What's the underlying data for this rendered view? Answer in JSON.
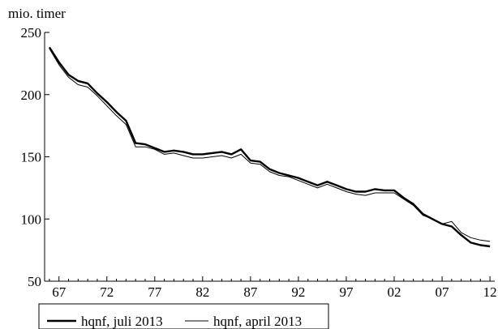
{
  "chart_data": {
    "type": "line",
    "ylabel": "mio. timer",
    "ylim": [
      50,
      250
    ],
    "yticks": [
      50,
      100,
      150,
      200,
      250
    ],
    "x_tick_labels": [
      "67",
      "72",
      "77",
      "82",
      "87",
      "92",
      "97",
      "02",
      "07",
      "12"
    ],
    "x_tick_positions": [
      1967,
      1972,
      1977,
      1982,
      1987,
      1992,
      1997,
      2002,
      2007,
      2012
    ],
    "xlim": [
      1965.5,
      2012.5
    ],
    "legend_position": "bottom-left",
    "grid": false,
    "series": [
      {
        "name": "hqnf, juli 2013",
        "color": "#000000",
        "line_style": "thick",
        "x": [
          1966,
          1967,
          1968,
          1969,
          1970,
          1971,
          1972,
          1973,
          1974,
          1975,
          1976,
          1977,
          1978,
          1979,
          1980,
          1981,
          1982,
          1983,
          1984,
          1985,
          1986,
          1987,
          1988,
          1989,
          1990,
          1991,
          1992,
          1993,
          1994,
          1995,
          1996,
          1997,
          1998,
          1999,
          2000,
          2001,
          2002,
          2003,
          2004,
          2005,
          2006,
          2007,
          2008,
          2009,
          2010,
          2011,
          2012
        ],
        "values": [
          238,
          226,
          216,
          211,
          209,
          201,
          194,
          186,
          179,
          161,
          160,
          157,
          154,
          155,
          154,
          152,
          152,
          153,
          154,
          152,
          156,
          147,
          146,
          140,
          137,
          135,
          133,
          130,
          127,
          130,
          127,
          124,
          122,
          122,
          124,
          123,
          123,
          117,
          112,
          104,
          100,
          96,
          94,
          87,
          81,
          79,
          78
        ]
      },
      {
        "name": "hqnf, april 2013",
        "color": "#000000",
        "line_style": "thin",
        "x": [
          1966,
          1967,
          1968,
          1969,
          1970,
          1971,
          1972,
          1973,
          1974,
          1975,
          1976,
          1977,
          1978,
          1979,
          1980,
          1981,
          1982,
          1983,
          1984,
          1985,
          1986,
          1987,
          1988,
          1989,
          1990,
          1991,
          1992,
          1993,
          1994,
          1995,
          1996,
          1997,
          1998,
          1999,
          2000,
          2001,
          2002,
          2003,
          2004,
          2005,
          2006,
          2007,
          2008,
          2009,
          2010,
          2011,
          2012
        ],
        "values": [
          237,
          224,
          214,
          208,
          206,
          199,
          191,
          183,
          176,
          158,
          158,
          156,
          152,
          153,
          151,
          149,
          149,
          150,
          151,
          149,
          152,
          145,
          144,
          138,
          135,
          134,
          131,
          128,
          125,
          128,
          125,
          122,
          120,
          119,
          121,
          121,
          121,
          116,
          111,
          103,
          100,
          96,
          98,
          89,
          85,
          83,
          82
        ]
      }
    ]
  }
}
